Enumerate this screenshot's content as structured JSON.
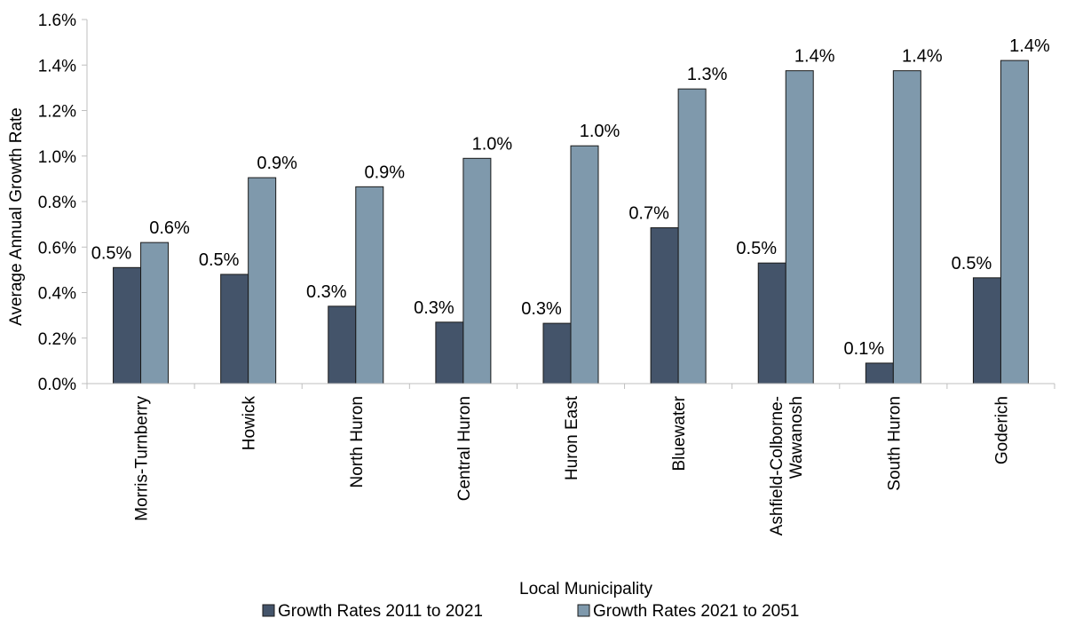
{
  "chart_data": {
    "type": "bar",
    "title": "",
    "xlabel": "Local Municipality",
    "ylabel": "Average Annual Growth Rate",
    "ylim": [
      0,
      1.6
    ],
    "ytick_step": 0.2,
    "ytick_labels": [
      "0.0%",
      "0.2%",
      "0.4%",
      "0.6%",
      "0.8%",
      "1.0%",
      "1.2%",
      "1.4%",
      "1.6%"
    ],
    "grid": false,
    "legend_position": "bottom",
    "categories": [
      [
        "Morris-Turnberry"
      ],
      [
        "Howick"
      ],
      [
        "North Huron"
      ],
      [
        "Central Huron"
      ],
      [
        "Huron East"
      ],
      [
        "Bluewater"
      ],
      [
        "Ashfield-Colborne-",
        "Wawanosh"
      ],
      [
        "South Huron"
      ],
      [
        "Goderich"
      ]
    ],
    "series": [
      {
        "name": "Growth Rates 2011 to 2021",
        "color": "#44546a",
        "values": [
          0.51,
          0.48,
          0.34,
          0.27,
          0.265,
          0.685,
          0.53,
          0.09,
          0.465
        ],
        "labels": [
          "0.5%",
          "0.5%",
          "0.3%",
          "0.3%",
          "0.3%",
          "0.7%",
          "0.5%",
          "0.1%",
          "0.5%"
        ]
      },
      {
        "name": "Growth Rates 2021 to 2051",
        "color": "#7f99ac",
        "values": [
          0.62,
          0.905,
          0.865,
          0.99,
          1.045,
          1.295,
          1.375,
          1.375,
          1.42
        ],
        "labels": [
          "0.6%",
          "0.9%",
          "0.9%",
          "1.0%",
          "1.0%",
          "1.3%",
          "1.4%",
          "1.4%",
          "1.4%"
        ]
      }
    ]
  }
}
